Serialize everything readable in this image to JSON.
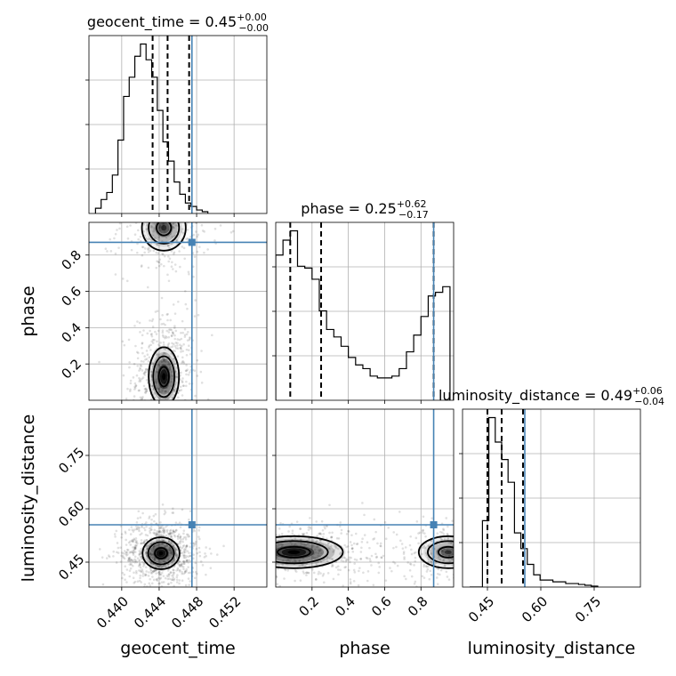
{
  "chart_data": {
    "type": "corner",
    "parameters": [
      {
        "name": "geocent_time",
        "label": "geocent_time",
        "title_main": "geocent_time = 0.45",
        "title_plus": "+0.00",
        "title_minus": "−0.00",
        "range": [
          0.4365,
          0.4555
        ],
        "ticks": [
          0.44,
          0.444,
          0.448,
          0.452
        ],
        "tick_labels": [
          "0.440",
          "0.444",
          "0.448",
          "0.452"
        ],
        "quantiles": [
          0.4433,
          0.4449,
          0.4472
        ],
        "truth": 0.4475,
        "hist": {
          "start": 0.4372,
          "width": 0.0006,
          "counts": [
            0.03,
            0.08,
            0.12,
            0.22,
            0.42,
            0.67,
            0.78,
            0.9,
            0.97,
            0.88,
            0.78,
            0.59,
            0.41,
            0.3,
            0.18,
            0.11,
            0.06,
            0.04,
            0.02,
            0.01
          ]
        }
      },
      {
        "name": "phase",
        "label": "phase",
        "title_main": "phase = 0.25",
        "title_plus": "+0.62",
        "title_minus": "−0.17",
        "range": [
          0.0,
          0.98
        ],
        "ticks": [
          0.2,
          0.4,
          0.6,
          0.8
        ],
        "tick_labels": [
          "0.2",
          "0.4",
          "0.6",
          "0.8"
        ],
        "quantiles": [
          0.08,
          0.25,
          0.87
        ],
        "truth": 0.87,
        "hist": {
          "start": 0.0,
          "width": 0.04,
          "counts": [
            0.78,
            0.86,
            0.91,
            0.72,
            0.71,
            0.65,
            0.48,
            0.38,
            0.34,
            0.29,
            0.23,
            0.19,
            0.17,
            0.13,
            0.12,
            0.12,
            0.13,
            0.17,
            0.26,
            0.35,
            0.45,
            0.56,
            0.58,
            0.61
          ]
        }
      },
      {
        "name": "luminosity_distance",
        "label": "luminosity_distance",
        "title_main": "luminosity_distance = 0.49",
        "title_plus": "+0.06",
        "title_minus": "−0.04",
        "range": [
          0.38,
          0.88
        ],
        "ticks": [
          0.45,
          0.6,
          0.75
        ],
        "tick_labels": [
          "0.45",
          "0.60",
          "0.75"
        ],
        "quantiles": [
          0.45,
          0.49,
          0.55
        ],
        "truth": 0.555,
        "hist": {
          "start": 0.4,
          "width": 0.018,
          "counts": [
            0.0,
            0.0,
            0.38,
            0.97,
            0.83,
            0.73,
            0.6,
            0.31,
            0.22,
            0.13,
            0.07,
            0.04,
            0.04,
            0.03,
            0.03,
            0.02,
            0.02,
            0.015,
            0.01,
            0.005
          ]
        }
      }
    ],
    "pairs": [
      {
        "x": "geocent_time",
        "y": "phase",
        "truth": [
          0.4475,
          0.87
        ],
        "blobs": [
          {
            "cx": 0.4445,
            "cy": 0.13,
            "sx": 0.0009,
            "sy": 0.09,
            "w": 1.0
          },
          {
            "cx": 0.4445,
            "cy": 0.95,
            "sx": 0.0013,
            "sy": 0.07,
            "w": 0.55
          }
        ]
      },
      {
        "x": "geocent_time",
        "y": "luminosity_distance",
        "truth": [
          0.4475,
          0.555
        ],
        "blobs": [
          {
            "cx": 0.4442,
            "cy": 0.475,
            "sx": 0.0011,
            "sy": 0.025,
            "w": 1.0
          }
        ]
      },
      {
        "x": "phase",
        "y": "luminosity_distance",
        "truth": [
          0.87,
          0.555
        ],
        "blobs": [
          {
            "cx": 0.1,
            "cy": 0.478,
            "sx": 0.15,
            "sy": 0.025,
            "w": 1.0
          },
          {
            "cx": 0.95,
            "cy": 0.478,
            "sx": 0.09,
            "sy": 0.025,
            "w": 0.5
          }
        ]
      }
    ]
  }
}
